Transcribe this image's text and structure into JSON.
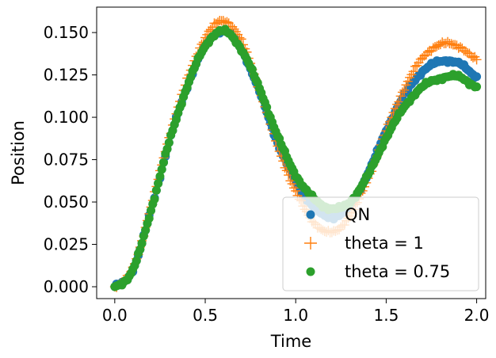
{
  "chart_data": {
    "type": "scatter",
    "xlabel": "Time",
    "ylabel": "Position",
    "xlim": [
      -0.1,
      2.05
    ],
    "ylim": [
      -0.007,
      0.165
    ],
    "xticks": [
      0.0,
      0.5,
      1.0,
      1.5,
      2.0
    ],
    "xtick_labels": [
      "0.0",
      "0.5",
      "1.0",
      "1.5",
      "2.0"
    ],
    "yticks": [
      0.0,
      0.025,
      0.05,
      0.075,
      0.1,
      0.125,
      0.15
    ],
    "ytick_labels": [
      "0.000",
      "0.025",
      "0.050",
      "0.075",
      "0.100",
      "0.125",
      "0.150"
    ],
    "grid": false,
    "legend_position": "lower-right",
    "series": [
      {
        "name": "QN",
        "marker": "circle",
        "color": "#1f77b4",
        "x": [
          0.0,
          0.1,
          0.2,
          0.3,
          0.4,
          0.5,
          0.6,
          0.7,
          0.8,
          0.9,
          1.0,
          1.1,
          1.2,
          1.3,
          1.4,
          1.5,
          1.6,
          1.7,
          1.8,
          1.9,
          2.0
        ],
        "y": [
          0.0,
          0.01,
          0.045,
          0.085,
          0.118,
          0.142,
          0.151,
          0.14,
          0.115,
          0.085,
          0.062,
          0.047,
          0.041,
          0.048,
          0.067,
          0.092,
          0.113,
          0.127,
          0.133,
          0.132,
          0.124
        ]
      },
      {
        "name": "theta = 1",
        "marker": "plus",
        "color": "#ff7f0e",
        "x": [
          0.0,
          0.1,
          0.2,
          0.3,
          0.4,
          0.5,
          0.6,
          0.7,
          0.8,
          0.9,
          1.0,
          1.1,
          1.2,
          1.3,
          1.4,
          1.5,
          1.6,
          1.7,
          1.8,
          1.9,
          2.0
        ],
        "y": [
          0.0,
          0.011,
          0.047,
          0.088,
          0.122,
          0.147,
          0.157,
          0.145,
          0.116,
          0.083,
          0.056,
          0.038,
          0.032,
          0.042,
          0.064,
          0.092,
          0.117,
          0.135,
          0.143,
          0.142,
          0.134
        ]
      },
      {
        "name": "theta = 0.75",
        "marker": "circle",
        "color": "#2ca02c",
        "x": [
          0.0,
          0.1,
          0.2,
          0.3,
          0.4,
          0.5,
          0.6,
          0.7,
          0.8,
          0.9,
          1.0,
          1.1,
          1.2,
          1.3,
          1.4,
          1.5,
          1.6,
          1.7,
          1.8,
          1.9,
          2.0
        ],
        "y": [
          0.0,
          0.01,
          0.045,
          0.085,
          0.118,
          0.142,
          0.151,
          0.14,
          0.117,
          0.089,
          0.066,
          0.052,
          0.046,
          0.05,
          0.066,
          0.088,
          0.106,
          0.118,
          0.123,
          0.124,
          0.118
        ]
      }
    ]
  }
}
